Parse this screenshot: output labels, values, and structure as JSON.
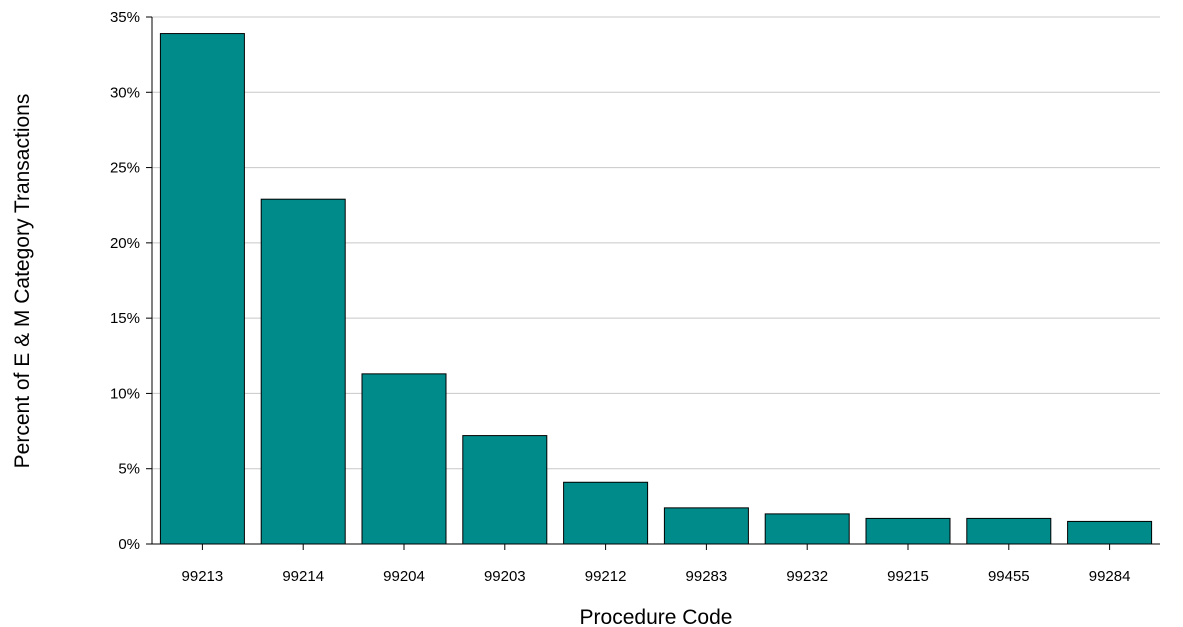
{
  "chart_data": {
    "type": "bar",
    "title": "",
    "xlabel": "Procedure Code",
    "ylabel": "Percent of E & M Category Transactions",
    "categories": [
      "99213",
      "99214",
      "99204",
      "99203",
      "99212",
      "99283",
      "99232",
      "99215",
      "99455",
      "99284"
    ],
    "values": [
      33.9,
      22.9,
      11.3,
      7.2,
      4.1,
      2.4,
      2.0,
      1.7,
      1.7,
      1.5
    ],
    "value_unit": "%",
    "ylim": [
      0,
      35
    ],
    "yticks": [
      "0%",
      "5%",
      "10%",
      "15%",
      "20%",
      "25%",
      "30%",
      "35%"
    ],
    "grid": true,
    "colors": {
      "bar": "#008B8B",
      "bar_outline": "#000000",
      "grid": "#C8C8C8"
    }
  }
}
